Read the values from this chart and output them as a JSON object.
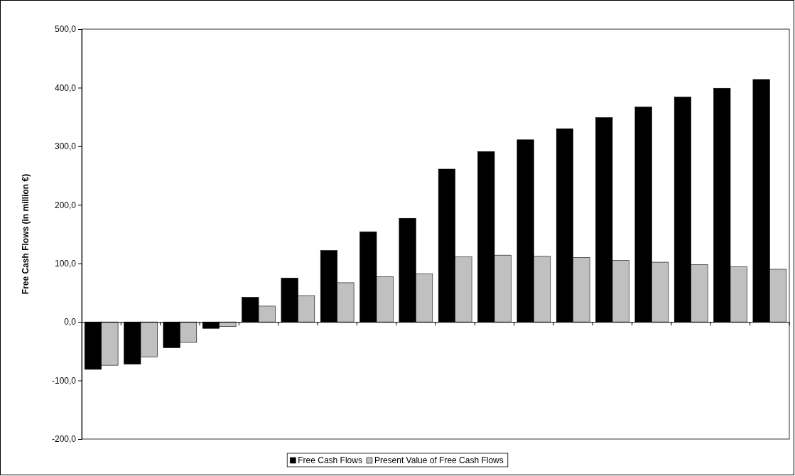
{
  "chart_data": {
    "type": "bar",
    "ylabel": "Free Cash Flows (in million €)",
    "categories": [
      null,
      null,
      null,
      null,
      null,
      null,
      null,
      null,
      null,
      null,
      null,
      null,
      null,
      null,
      null,
      null,
      null,
      null
    ],
    "series": [
      {
        "name": "Free Cash Flows",
        "color": "#000000",
        "values": [
          -81,
          -72,
          -44,
          -11,
          42,
          75,
          122,
          154,
          177,
          261,
          291,
          311,
          330,
          349,
          367,
          384,
          399,
          414
        ]
      },
      {
        "name": "Present Value of Free Cash Flows",
        "color": "#c0c0c0",
        "values": [
          -74,
          -60,
          -35,
          -8,
          27,
          45,
          67,
          77,
          82,
          111,
          114,
          112,
          110,
          105,
          102,
          98,
          94,
          90
        ]
      }
    ],
    "ylim": [
      -200,
      500
    ],
    "yticks": [
      {
        "value": -200,
        "label": "-200,0"
      },
      {
        "value": -100,
        "label": "-100,0"
      },
      {
        "value": 0,
        "label": "0,0"
      },
      {
        "value": 100,
        "label": "100,0"
      },
      {
        "value": 200,
        "label": "200,0"
      },
      {
        "value": 300,
        "label": "300,0"
      },
      {
        "value": 400,
        "label": "400,0"
      },
      {
        "value": 500,
        "label": "500,0"
      }
    ],
    "legend": "bottom"
  }
}
